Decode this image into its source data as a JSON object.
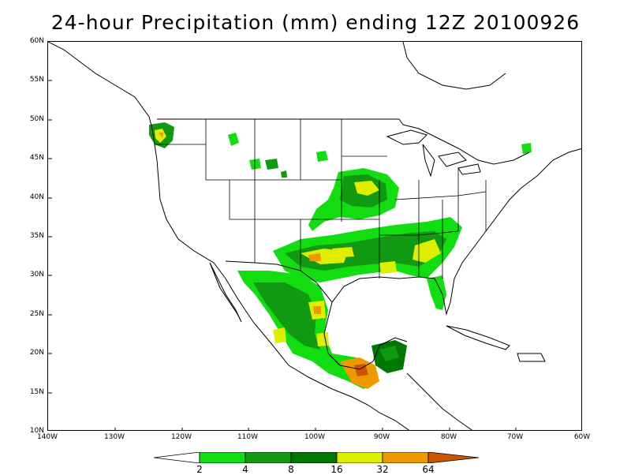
{
  "title": "24-hour Precipitation (mm) ending 12Z 20100926",
  "axes": {
    "lat_labels": [
      "60N",
      "55N",
      "50N",
      "45N",
      "40N",
      "35N",
      "30N",
      "25N",
      "20N",
      "15N",
      "10N"
    ],
    "lon_labels": [
      "140W",
      "130W",
      "120W",
      "110W",
      "100W",
      "90W",
      "80W",
      "70W",
      "60W"
    ]
  },
  "legend": {
    "thresholds": [
      "2",
      "4",
      "8",
      "16",
      "32",
      "64"
    ],
    "colors": [
      "#ffffff",
      "#11dd11",
      "#119911",
      "#007700",
      "#ddee00",
      "#ee9900",
      "#cc5500"
    ]
  },
  "map": {
    "lat_range": [
      10,
      60
    ],
    "lon_range": [
      -140,
      -60
    ],
    "projection": "latlon"
  }
}
